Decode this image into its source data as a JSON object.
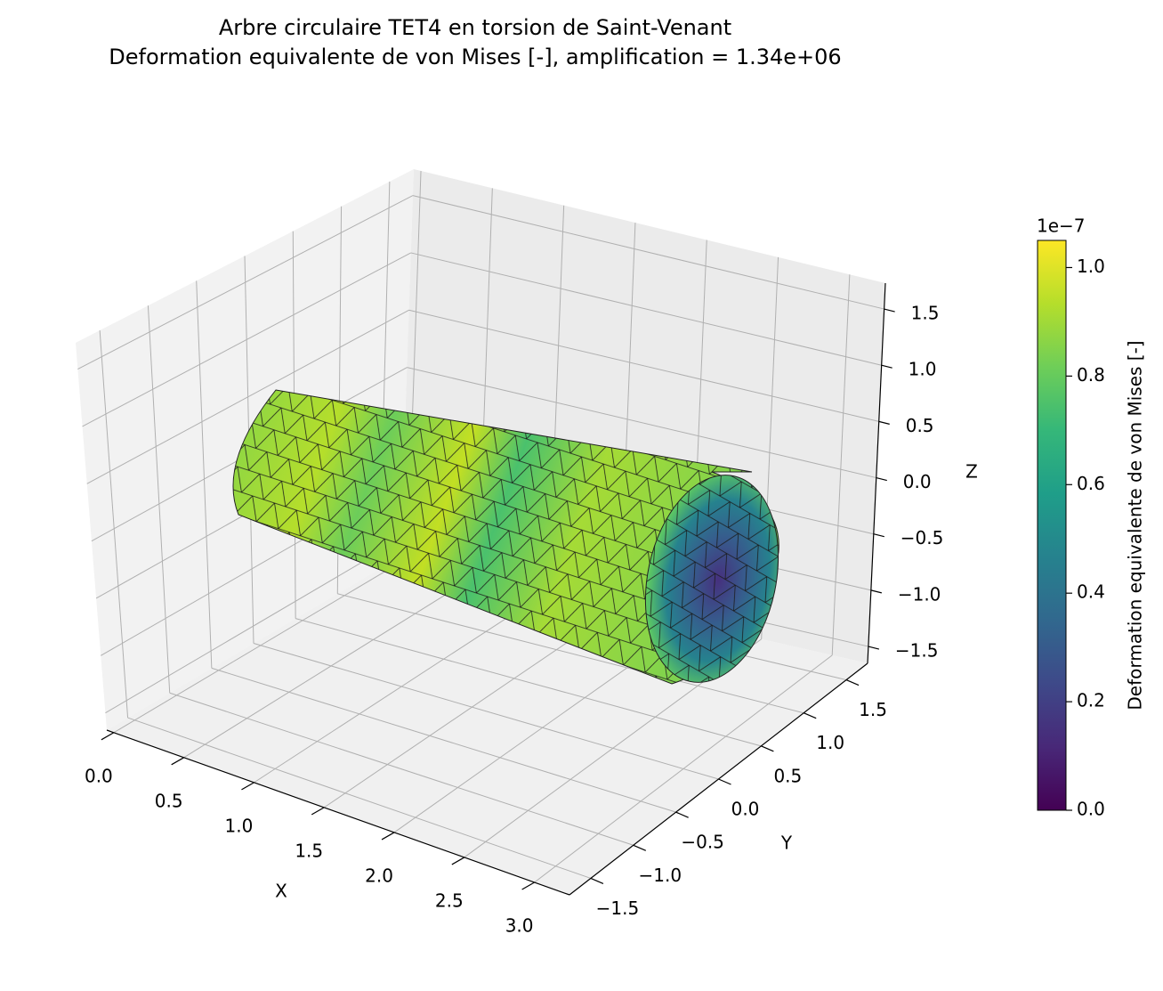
{
  "chart_data": {
    "type": "surface3d",
    "title": "Arbre circulaire TET4 en torsion de Saint-Venant",
    "subtitle": "Deformation equivalente de von Mises [-], amplification = 1.34e+06",
    "xlabel": "X",
    "ylabel": "Y",
    "zlabel": "Z",
    "xlim": [
      -0.05,
      3.25
    ],
    "ylim": [
      -1.75,
      1.75
    ],
    "zlim": [
      -1.65,
      1.73
    ],
    "xticks": [
      {
        "value": 0,
        "label": "0.0"
      },
      0.5,
      {
        "value": 1,
        "label": "1.0"
      },
      1.5,
      {
        "value": 2,
        "label": "2.0"
      },
      2.5,
      {
        "value": 3,
        "label": "3.0"
      }
    ],
    "yticks": [
      {
        "value": -1.5,
        "label": "−1.5"
      },
      {
        "value": -1,
        "label": "−1.0"
      },
      {
        "value": -0.5,
        "label": "−0.5"
      },
      {
        "value": 0,
        "label": "0.0"
      },
      0.5,
      {
        "value": 1,
        "label": "1.0"
      },
      1.5
    ],
    "zticks": [
      {
        "value": -1.5,
        "label": "−1.5"
      },
      {
        "value": -1,
        "label": "−1.0"
      },
      {
        "value": -0.5,
        "label": "−0.5"
      },
      {
        "value": 0,
        "label": "0.0"
      },
      0.5,
      {
        "value": 1,
        "label": "1.0"
      },
      1.5
    ],
    "grid": true,
    "colormap": "viridis",
    "colorbar": {
      "label": "Deformation equivalente de von Mises [-]",
      "offset_text": "1e−7",
      "clim": [
        0,
        1.05
      ],
      "ticks": [
        {
          "value": 0,
          "label": "0.0"
        },
        0.2,
        0.4,
        0.6,
        0.8,
        {
          "value": 1,
          "label": "1.0"
        }
      ]
    }
  }
}
